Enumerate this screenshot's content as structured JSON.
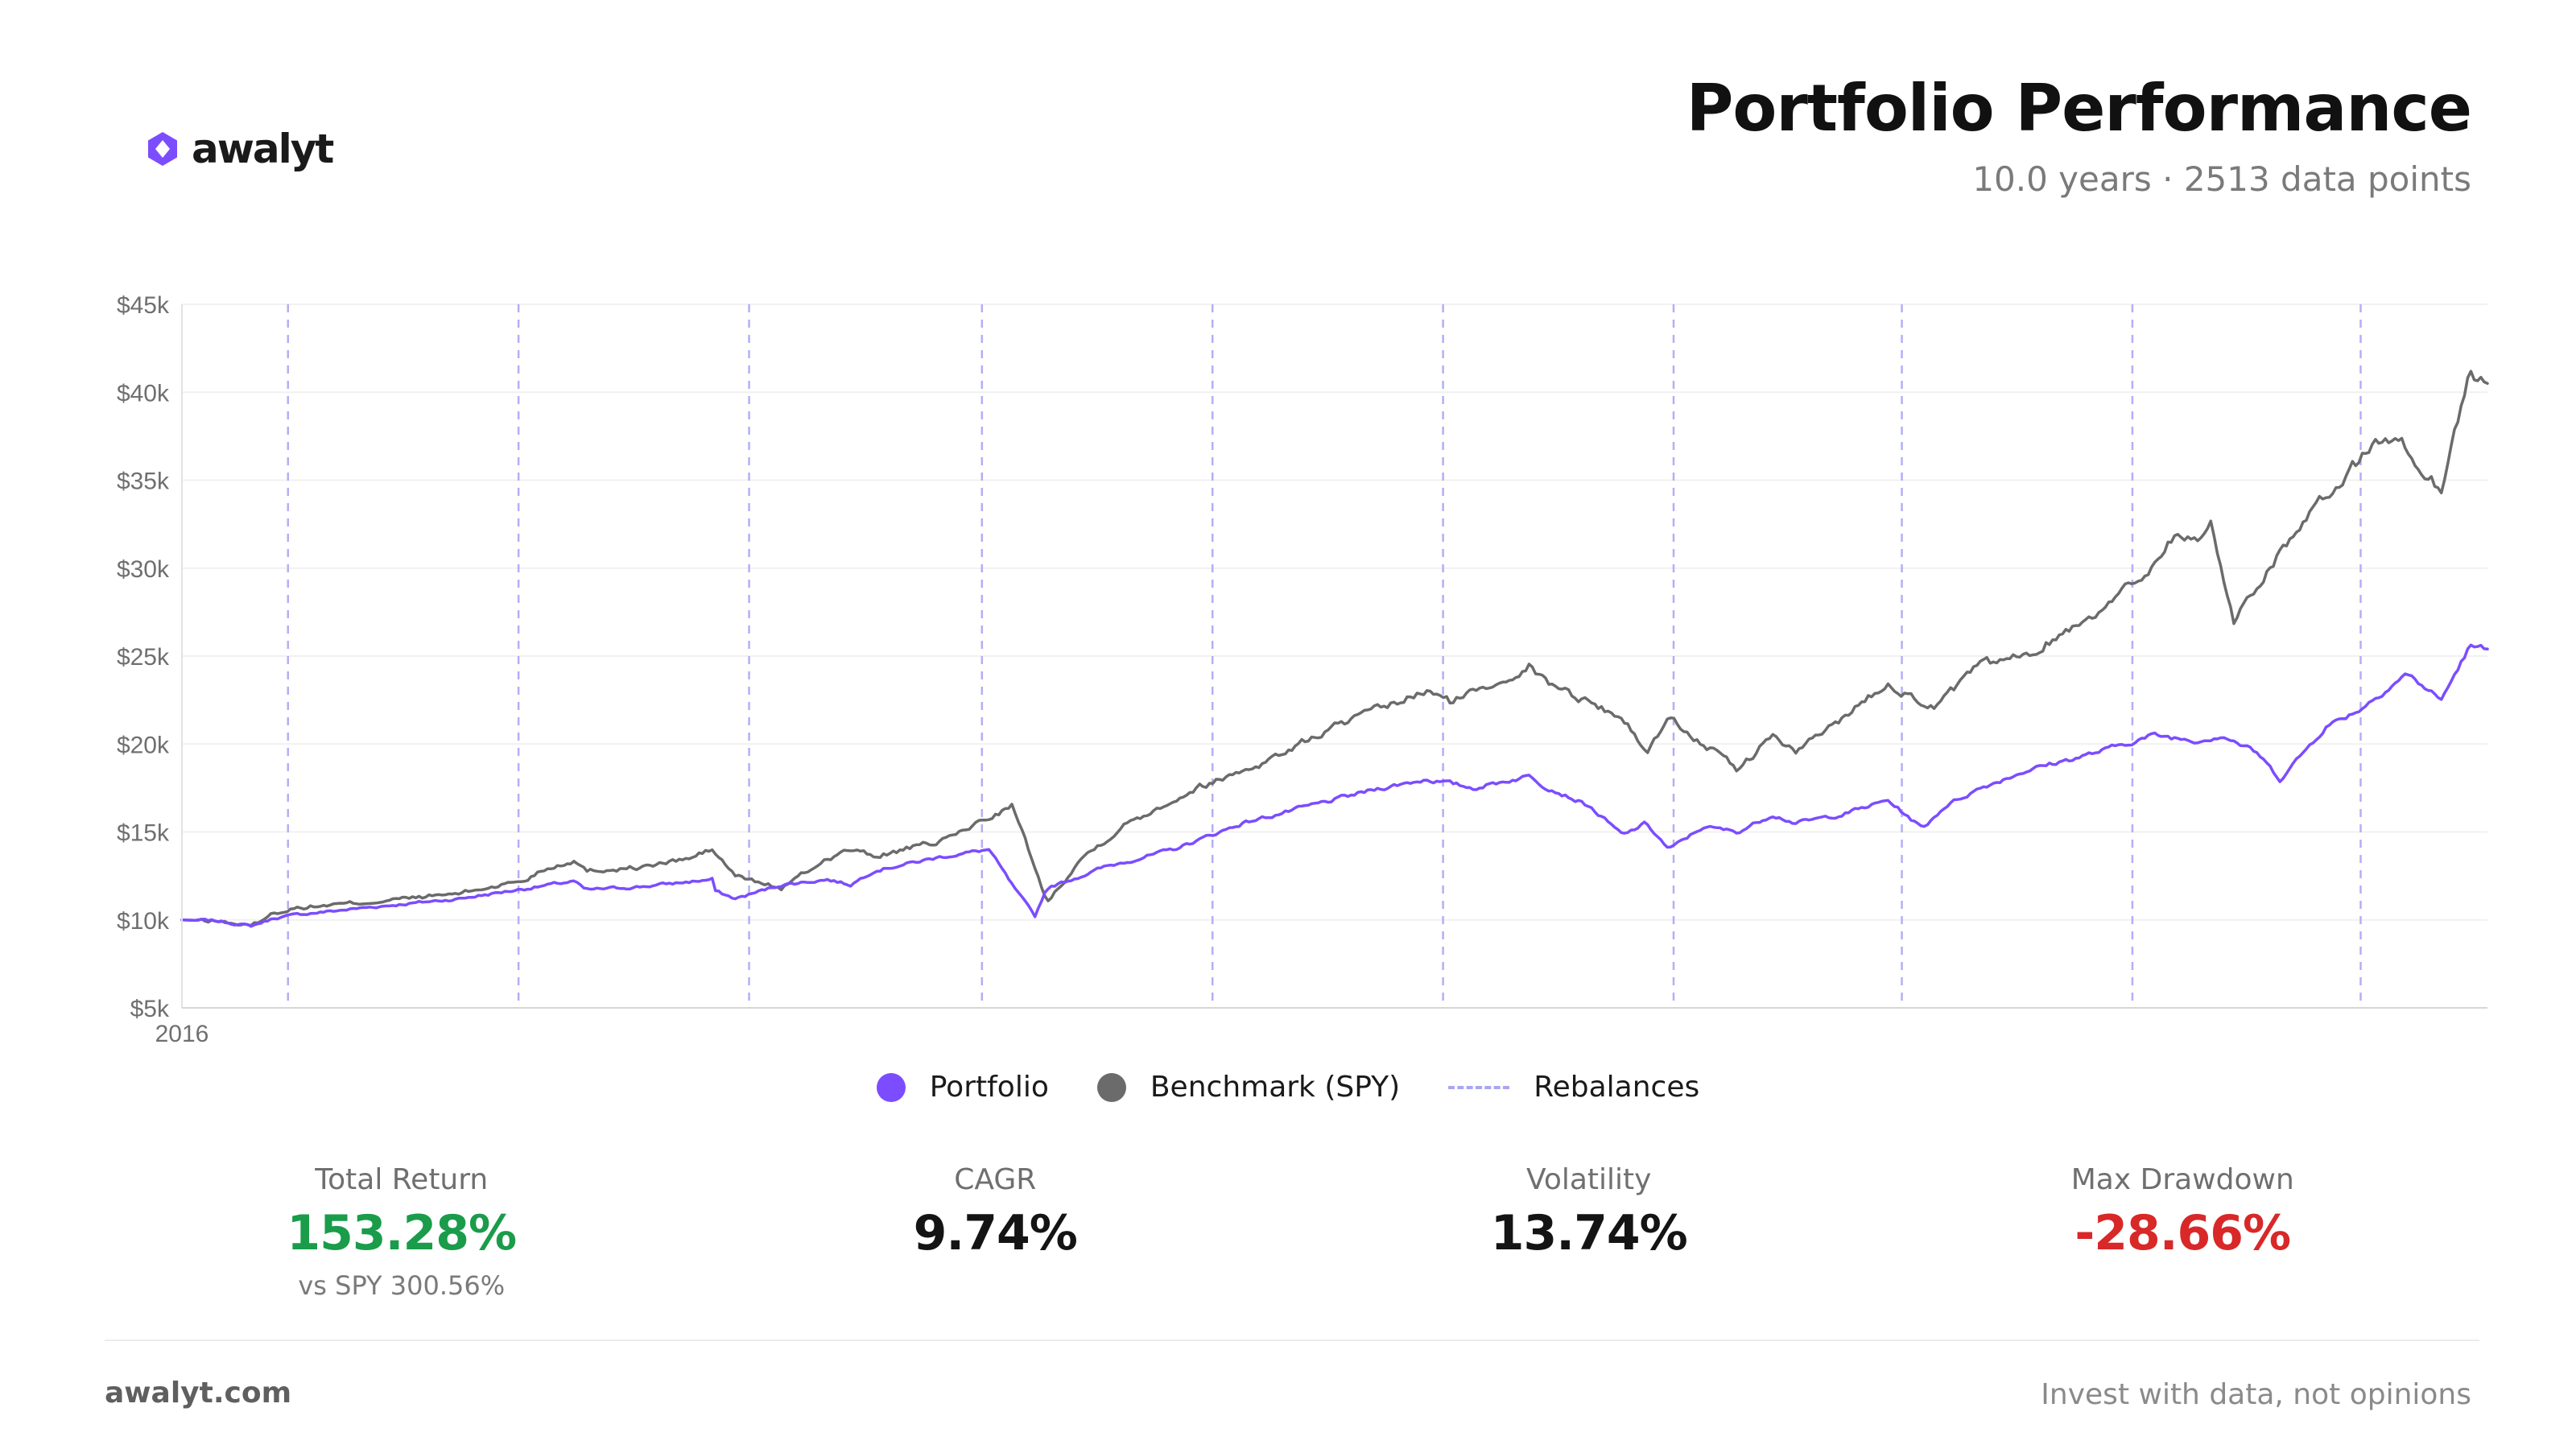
{
  "brand": {
    "name": "awalyt",
    "icon": "awalyt-logo-icon",
    "color": "#7b4dff"
  },
  "header": {
    "title": "Portfolio Performance",
    "subtitle": "10.0 years · 2513 data points"
  },
  "legend": {
    "portfolio": "Portfolio",
    "benchmark": "Benchmark (SPY)",
    "rebalances": "Rebalances"
  },
  "stats": {
    "total_return": {
      "label": "Total Return",
      "value": "153.28%",
      "sub": "vs SPY 300.56%",
      "color": "#1a9c4a"
    },
    "cagr": {
      "label": "CAGR",
      "value": "9.74%"
    },
    "volatility": {
      "label": "Volatility",
      "value": "13.74%"
    },
    "max_drawdown": {
      "label": "Max Drawdown",
      "value": "-28.66%",
      "color": "#d82828"
    }
  },
  "footer": {
    "site": "awalyt.com",
    "tagline": "Invest with data, not opinions"
  },
  "chart_data": {
    "type": "line",
    "x_label_start": "2016",
    "x_range_years": [
      0,
      10
    ],
    "ylim": [
      5000,
      45000
    ],
    "y_ticks": [
      {
        "value": 5000,
        "label": "$5k"
      },
      {
        "value": 10000,
        "label": "$10k"
      },
      {
        "value": 15000,
        "label": "$15k"
      },
      {
        "value": 20000,
        "label": "$20k"
      },
      {
        "value": 25000,
        "label": "$25k"
      },
      {
        "value": 30000,
        "label": "$30k"
      },
      {
        "value": 35000,
        "label": "$35k"
      },
      {
        "value": 40000,
        "label": "$40k"
      },
      {
        "value": 45000,
        "label": "$45k"
      }
    ],
    "grid": true,
    "legend_position": "bottom",
    "rebalances_years": [
      0.46,
      1.46,
      2.46,
      3.47,
      4.47,
      5.47,
      6.47,
      7.46,
      8.46,
      9.45
    ],
    "series": [
      {
        "name": "Portfolio",
        "color": "#7b4dff",
        "x": [
          0,
          0.15,
          0.3,
          0.4,
          0.5,
          0.8,
          1.2,
          1.5,
          1.7,
          1.75,
          2.0,
          2.3,
          2.3,
          2.4,
          2.6,
          2.8,
          2.9,
          3.0,
          3.3,
          3.5,
          3.6,
          3.7,
          3.75,
          3.9,
          4.0,
          4.3,
          4.6,
          4.9,
          5.2,
          5.4,
          5.6,
          5.85,
          5.9,
          6.1,
          6.25,
          6.35,
          6.45,
          6.6,
          6.75,
          6.9,
          7.0,
          7.2,
          7.4,
          7.55,
          7.65,
          7.8,
          8.0,
          8.3,
          8.55,
          8.75,
          8.85,
          9.0,
          9.1,
          9.3,
          9.45,
          9.6,
          9.65,
          9.8,
          9.92,
          10.0
        ],
        "values": [
          10000,
          9950,
          9650,
          10100,
          10300,
          10700,
          11200,
          11800,
          12200,
          11700,
          11900,
          12300,
          11700,
          11200,
          12000,
          12300,
          12000,
          12800,
          13600,
          14000,
          12000,
          10200,
          11800,
          12500,
          13000,
          14000,
          15500,
          16500,
          17500,
          18000,
          17500,
          18200,
          17700,
          16500,
          14800,
          15500,
          14000,
          15300,
          15000,
          16000,
          15500,
          16000,
          16800,
          15200,
          16500,
          17500,
          18500,
          19500,
          20500,
          20200,
          20500,
          19500,
          18000,
          21000,
          22000,
          23500,
          24000,
          22500,
          25500,
          25400
        ]
      },
      {
        "name": "Benchmark (SPY)",
        "color": "#6b6b6b",
        "x": [
          0,
          0.15,
          0.3,
          0.4,
          0.5,
          0.8,
          1.2,
          1.5,
          1.55,
          1.7,
          1.75,
          2.0,
          2.2,
          2.3,
          2.4,
          2.6,
          2.8,
          2.9,
          3.0,
          3.3,
          3.6,
          3.7,
          3.75,
          3.9,
          4.1,
          4.4,
          4.7,
          5.0,
          5.2,
          5.4,
          5.5,
          5.7,
          5.85,
          5.9,
          6.1,
          6.25,
          6.35,
          6.45,
          6.6,
          6.75,
          6.9,
          7.0,
          7.2,
          7.4,
          7.6,
          7.8,
          8.0,
          8.3,
          8.5,
          8.65,
          8.75,
          8.8,
          8.9,
          9.1,
          9.3,
          9.5,
          9.62,
          9.65,
          9.8,
          9.92,
          10.0
        ],
        "values": [
          10000,
          9950,
          9650,
          10400,
          10700,
          11000,
          11500,
          12300,
          12800,
          13400,
          12800,
          13000,
          13500,
          14000,
          12500,
          11800,
          13500,
          14000,
          13600,
          14500,
          16500,
          13000,
          11000,
          13500,
          15500,
          17500,
          19000,
          21000,
          22000,
          23000,
          22400,
          23500,
          24500,
          23700,
          22400,
          21500,
          19500,
          21500,
          20000,
          18500,
          20500,
          19500,
          21500,
          23500,
          22000,
          24500,
          25000,
          27500,
          29500,
          32000,
          31500,
          32500,
          27000,
          31000,
          34000,
          37000,
          37500,
          36500,
          34500,
          41000,
          40500
        ]
      }
    ]
  }
}
